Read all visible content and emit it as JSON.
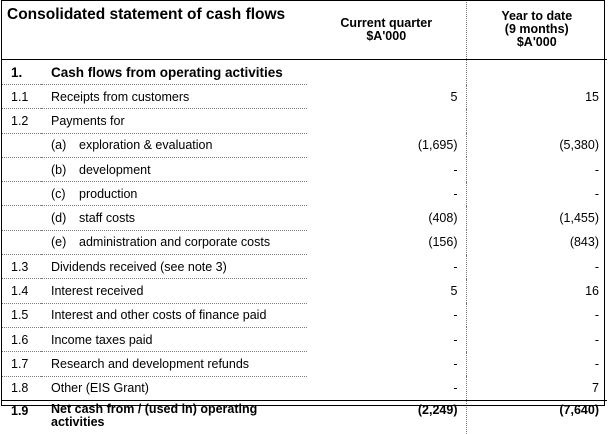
{
  "header": {
    "title": "Consolidated statement of cash flows",
    "col_quarter": [
      "Current quarter",
      "$A'000"
    ],
    "col_ytd": [
      "Year to date",
      "(9 months)",
      "$A'000"
    ]
  },
  "section": {
    "number": "1.",
    "title": "Cash flows from operating activities"
  },
  "rows": [
    {
      "num": "1.1",
      "sub": "",
      "label": "Receipts from customers",
      "quarter": "5",
      "ytd": "15"
    },
    {
      "num": "1.2",
      "sub": "",
      "label": "Payments for",
      "quarter": "",
      "ytd": ""
    },
    {
      "num": "",
      "sub": "(a)",
      "label": "exploration & evaluation",
      "quarter": "(1,695)",
      "ytd": "(5,380)"
    },
    {
      "num": "",
      "sub": "(b)",
      "label": "development",
      "quarter": "-",
      "ytd": "-"
    },
    {
      "num": "",
      "sub": "(c)",
      "label": "production",
      "quarter": "-",
      "ytd": "-"
    },
    {
      "num": "",
      "sub": "(d)",
      "label": "staff costs",
      "quarter": "(408)",
      "ytd": "(1,455)"
    },
    {
      "num": "",
      "sub": "(e)",
      "label": "administration and corporate costs",
      "quarter": "(156)",
      "ytd": "(843)"
    },
    {
      "num": "1.3",
      "sub": "",
      "label": "Dividends received (see note 3)",
      "quarter": "-",
      "ytd": "-"
    },
    {
      "num": "1.4",
      "sub": "",
      "label": "Interest received",
      "quarter": "5",
      "ytd": "16"
    },
    {
      "num": "1.5",
      "sub": "",
      "label": "Interest and other costs of finance paid",
      "quarter": "-",
      "ytd": "-"
    },
    {
      "num": "1.6",
      "sub": "",
      "label": "Income taxes paid",
      "quarter": "-",
      "ytd": "-"
    },
    {
      "num": "1.7",
      "sub": "",
      "label": "Research and development refunds",
      "quarter": "-",
      "ytd": "-"
    },
    {
      "num": "1.8",
      "sub": "",
      "label": "Other (EIS Grant)",
      "quarter": "-",
      "ytd": "7"
    }
  ],
  "total": {
    "num": "1.9",
    "label": "Net cash from / (used in) operating activities",
    "quarter": "(2,249)",
    "ytd": "(7,640)"
  }
}
